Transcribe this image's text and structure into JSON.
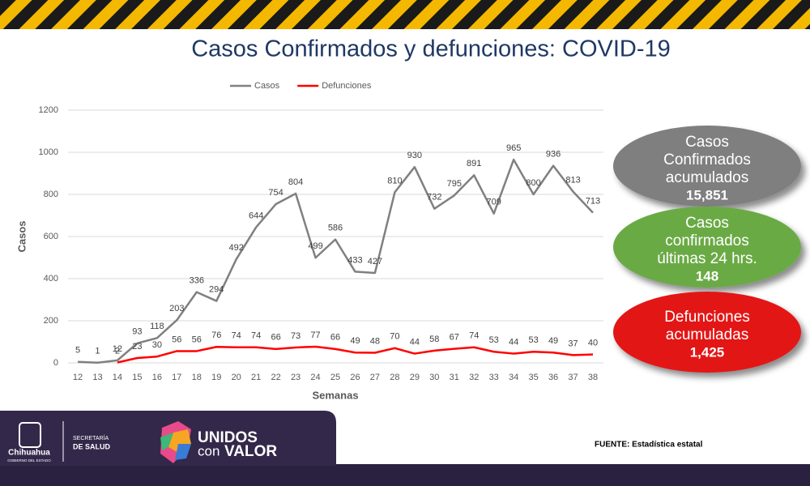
{
  "chart_data": {
    "type": "line",
    "title": "Casos Confirmados y defunciones: COVID-19",
    "categories": [
      "12",
      "13",
      "14",
      "15",
      "16",
      "17",
      "18",
      "19",
      "20",
      "21",
      "22",
      "23",
      "24",
      "25",
      "26",
      "27",
      "28",
      "29",
      "30",
      "31",
      "32",
      "33",
      "34",
      "35",
      "36",
      "37",
      "38"
    ],
    "series": [
      {
        "name": "Casos",
        "color": "#808080",
        "values": [
          5,
          1,
          12,
          93,
          118,
          203,
          336,
          294,
          492,
          644,
          754,
          804,
          499,
          586,
          433,
          427,
          810,
          930,
          732,
          795,
          891,
          709,
          965,
          800,
          936,
          813,
          713
        ]
      },
      {
        "name": "Defunciones",
        "color": "#ff0000",
        "values": [
          null,
          null,
          2,
          23,
          30,
          56,
          56,
          76,
          74,
          74,
          66,
          73,
          77,
          66,
          49,
          48,
          70,
          44,
          58,
          67,
          74,
          53,
          44,
          53,
          49,
          37,
          40
        ]
      }
    ],
    "ylim": [
      0,
      1200
    ],
    "yticks": [
      0,
      200,
      400,
      600,
      800,
      1000,
      1200
    ],
    "ylabel": "Casos",
    "xlabel": "Semanas",
    "legend": "top"
  },
  "summary": [
    {
      "label": [
        "Casos",
        "Confirmados",
        "acumulados"
      ],
      "value": "15,851",
      "color": "#7f7f7f"
    },
    {
      "label": [
        "Casos",
        "confirmados",
        "últimas 24 hrs."
      ],
      "value": "148",
      "color": "#6aaa45"
    },
    {
      "label": [
        "Defunciones",
        "acumuladas"
      ],
      "value": "1,425",
      "color": "#e31919"
    }
  ],
  "footer": {
    "state": "Chihuahua",
    "government": "GOBIERNO DEL ESTADO",
    "ministry": [
      "SECRETARÍA",
      "DE SALUD"
    ],
    "campaign": [
      "UNIDOS",
      "con",
      "VALOR"
    ],
    "source": "FUENTE: Estadística estatal"
  }
}
